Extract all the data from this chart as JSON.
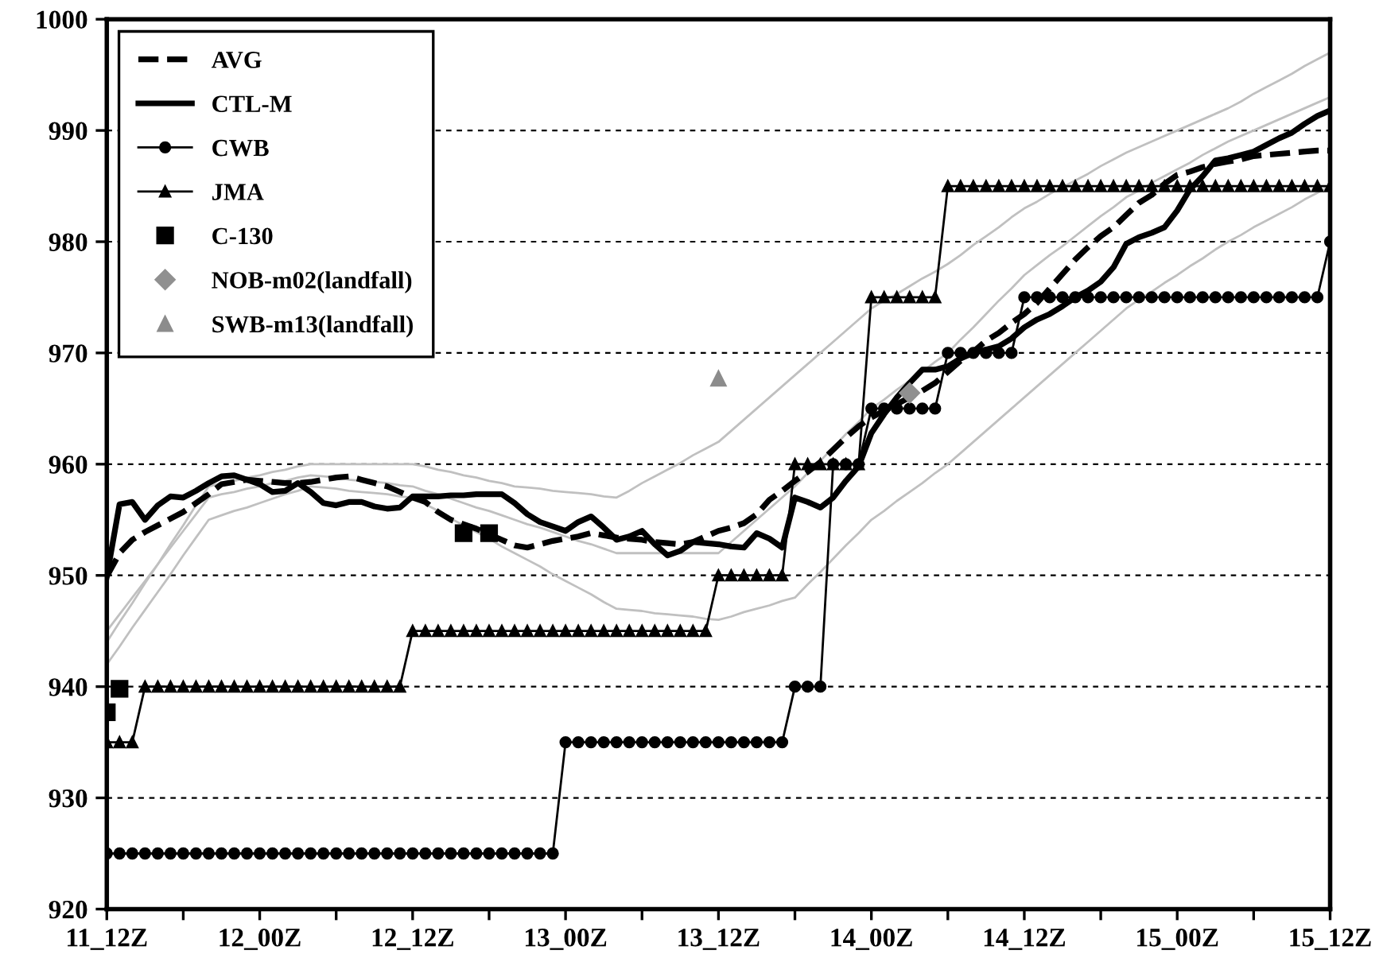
{
  "chart_data": {
    "type": "line",
    "ylim": [
      920,
      1000
    ],
    "categories": [
      "11_12Z",
      null,
      null,
      null,
      null,
      null,
      null,
      null,
      null,
      null,
      null,
      null,
      "12_00Z",
      null,
      null,
      null,
      null,
      null,
      null,
      null,
      null,
      null,
      null,
      null,
      "12_12Z",
      null,
      null,
      null,
      null,
      null,
      null,
      null,
      null,
      null,
      null,
      null,
      "13_00Z",
      null,
      null,
      null,
      null,
      null,
      null,
      null,
      null,
      null,
      null,
      null,
      "13_12Z",
      null,
      null,
      null,
      null,
      null,
      null,
      null,
      null,
      null,
      null,
      null,
      "14_00Z",
      null,
      null,
      null,
      null,
      null,
      null,
      null,
      null,
      null,
      null,
      null,
      "14_12Z",
      null,
      null,
      null,
      null,
      null,
      null,
      null,
      null,
      null,
      null,
      null,
      "15_00Z",
      null,
      null,
      null,
      null,
      null,
      null,
      null,
      null,
      null,
      null,
      null,
      "15_12Z"
    ],
    "yticks": [
      920,
      930,
      940,
      950,
      960,
      970,
      980,
      990,
      1000
    ],
    "grid": "y",
    "legend": "top left",
    "series": [
      {
        "color": "#c0c0c0",
        "values": [
          944,
          945.8,
          947.5,
          949.3,
          951,
          952.8,
          954.5,
          956.3,
          958,
          958.3,
          958.5,
          958.8,
          959,
          959.3,
          959.5,
          959.8,
          960,
          960,
          960,
          960,
          960,
          960,
          960,
          960,
          960,
          959.8,
          959.5,
          959.3,
          959,
          958.8,
          958.5,
          958.3,
          958,
          957.9,
          957.8,
          957.6,
          957.5,
          957.4,
          957.3,
          957.1,
          957,
          957.6,
          958.3,
          958.9,
          959.5,
          960.1,
          960.8,
          961.4,
          962,
          963,
          964,
          965,
          966,
          967,
          968,
          969,
          970,
          971,
          972,
          973,
          974,
          974.7,
          975.3,
          976,
          976.7,
          977.3,
          978,
          978.8,
          979.7,
          980.5,
          981.3,
          982.2,
          983,
          983.6,
          984.3,
          984.9,
          985.5,
          986.1,
          986.8,
          987.4,
          988,
          988.5,
          989,
          989.5,
          990,
          990.5,
          991,
          991.5,
          992,
          992.6,
          993.3,
          993.9,
          994.5,
          995.1,
          995.8,
          996.4,
          997
        ]
      },
      {
        "color": "#c0c0c0",
        "values": [
          942,
          943.6,
          945.3,
          946.9,
          948.5,
          950.1,
          951.8,
          953.4,
          955,
          955.4,
          955.8,
          956.1,
          956.5,
          956.9,
          957.3,
          957.6,
          958,
          957.9,
          957.8,
          957.6,
          957.5,
          957.4,
          957.3,
          957.1,
          957,
          956.4,
          955.8,
          955.1,
          954.5,
          953.9,
          953.3,
          952.6,
          952,
          951.4,
          950.8,
          950.1,
          949.5,
          948.9,
          948.3,
          947.6,
          947,
          946.9,
          946.8,
          946.6,
          946.5,
          946.4,
          946.3,
          946.1,
          946,
          946.3,
          946.7,
          947,
          947.3,
          947.7,
          948,
          949.2,
          950.3,
          951.5,
          952.7,
          953.8,
          955,
          955.8,
          956.7,
          957.5,
          958.3,
          959.2,
          960,
          961,
          962,
          963,
          964,
          965,
          966,
          967,
          968,
          969,
          970,
          971,
          972,
          973,
          974,
          974.8,
          975.5,
          976.3,
          977,
          977.8,
          978.5,
          979.3,
          980,
          980.6,
          981.3,
          981.9,
          982.5,
          983.1,
          983.8,
          984.4,
          985
        ]
      },
      {
        "color": "#c0c0c0",
        "values": [
          945,
          946.5,
          948,
          949.5,
          951,
          952.5,
          954,
          955.5,
          957,
          957.3,
          957.5,
          957.8,
          958,
          958.3,
          958.5,
          958.8,
          959,
          958.9,
          958.8,
          958.6,
          958.5,
          958.4,
          958.3,
          958.1,
          958,
          957.6,
          957.3,
          956.9,
          956.5,
          956.1,
          955.8,
          955.4,
          955,
          954.6,
          954.3,
          953.9,
          953.5,
          953.1,
          952.8,
          952.4,
          952,
          952,
          952,
          952,
          952,
          952,
          952,
          952,
          952,
          953,
          954,
          955,
          956,
          957,
          958,
          959.2,
          960.3,
          961.5,
          962.7,
          963.8,
          965,
          965.8,
          966.7,
          967.5,
          968.3,
          969.2,
          970,
          971.2,
          972.3,
          973.5,
          974.7,
          975.8,
          977,
          977.9,
          978.8,
          979.6,
          980.5,
          981.4,
          982.3,
          983.1,
          984,
          984.6,
          985.3,
          985.9,
          986.5,
          987.1,
          987.8,
          988.4,
          989,
          989.5,
          990,
          990.5,
          991,
          991.5,
          992,
          992.5,
          993
        ]
      },
      {
        "name": "AVG",
        "color": "#000000",
        "line_style": "dashed",
        "values": [
          949.9,
          952,
          953.2,
          953.9,
          954.5,
          955.1,
          955.7,
          956.5,
          957.3,
          958.2,
          958.4,
          958.6,
          958.5,
          958.4,
          958.3,
          958.3,
          958.4,
          958.6,
          958.8,
          958.9,
          958.6,
          958.3,
          958,
          957.5,
          957,
          956.6,
          955.7,
          955,
          954.6,
          954.2,
          953.7,
          953.2,
          952.7,
          952.5,
          952.8,
          953.1,
          953.3,
          953.5,
          953.8,
          953.6,
          953.4,
          953.3,
          953.2,
          953,
          952.9,
          952.8,
          953,
          953.5,
          954,
          954.3,
          954.7,
          955.5,
          956.8,
          957.6,
          958.5,
          959.3,
          960.2,
          961.3,
          962.4,
          963.4,
          964.2,
          964.8,
          965.4,
          966,
          966.6,
          967.3,
          968.3,
          969.3,
          970.1,
          971.1,
          971.8,
          972.7,
          973.5,
          974.5,
          975.8,
          977.1,
          978.4,
          979.5,
          980.5,
          981.3,
          982.4,
          983.5,
          984.2,
          985.2,
          986,
          986.3,
          986.7,
          987,
          987.2,
          987.4,
          987.7,
          987.8,
          987.9,
          988,
          988.1,
          988.2,
          988.2
        ]
      },
      {
        "name": "CTL-M",
        "color": "#000000",
        "line_style": "solid",
        "values": [
          949.9,
          956.4,
          956.6,
          955,
          956.3,
          957.1,
          957,
          957.6,
          958.3,
          958.9,
          959,
          958.6,
          958.2,
          957.5,
          957.6,
          958.3,
          957.5,
          956.5,
          956.3,
          956.6,
          956.6,
          956.2,
          956,
          956.1,
          957.1,
          957.1,
          957.1,
          957.2,
          957.2,
          957.3,
          957.3,
          957.3,
          956.5,
          955.5,
          954.8,
          954.4,
          954,
          954.8,
          955.3,
          954.3,
          953.2,
          953.5,
          954,
          952.8,
          951.8,
          952.2,
          953,
          952.9,
          952.8,
          952.6,
          952.5,
          953.8,
          953.3,
          952.5,
          957,
          956.6,
          956.1,
          957,
          958.5,
          959.8,
          962.8,
          964.5,
          966,
          967.3,
          968.5,
          968.5,
          968.8,
          969.5,
          970,
          970.3,
          970.6,
          971.3,
          972.3,
          973,
          973.5,
          974.2,
          975,
          975.6,
          976.4,
          977.7,
          979.8,
          980.4,
          980.8,
          981.3,
          982.8,
          984.7,
          985.9,
          987.3,
          987.5,
          987.8,
          988.1,
          988.7,
          989.3,
          989.8,
          990.6,
          991.3,
          991.8
        ]
      },
      {
        "name": "CWB",
        "color": "#000000",
        "line_style": "solid",
        "marker": "circle",
        "values": [
          925,
          925,
          925,
          925,
          925,
          925,
          925,
          925,
          925,
          925,
          925,
          925,
          925,
          925,
          925,
          925,
          925,
          925,
          925,
          925,
          925,
          925,
          925,
          925,
          925,
          925,
          925,
          925,
          925,
          925,
          925,
          925,
          925,
          925,
          925,
          925,
          935,
          935,
          935,
          935,
          935,
          935,
          935,
          935,
          935,
          935,
          935,
          935,
          935,
          935,
          935,
          935,
          935,
          935,
          940,
          940,
          940,
          960,
          960,
          960,
          965,
          965,
          965,
          965,
          965,
          965,
          970,
          970,
          970,
          970,
          970,
          970,
          975,
          975,
          975,
          975,
          975,
          975,
          975,
          975,
          975,
          975,
          975,
          975,
          975,
          975,
          975,
          975,
          975,
          975,
          975,
          975,
          975,
          975,
          975,
          975,
          980
        ]
      },
      {
        "name": "JMA",
        "color": "#000000",
        "line_style": "solid",
        "marker": "triangle",
        "values": [
          935,
          935,
          935,
          940,
          940,
          940,
          940,
          940,
          940,
          940,
          940,
          940,
          940,
          940,
          940,
          940,
          940,
          940,
          940,
          940,
          940,
          940,
          940,
          940,
          945,
          945,
          945,
          945,
          945,
          945,
          945,
          945,
          945,
          945,
          945,
          945,
          945,
          945,
          945,
          945,
          945,
          945,
          945,
          945,
          945,
          945,
          945,
          945,
          950,
          950,
          950,
          950,
          950,
          950,
          960,
          960,
          960,
          960,
          960,
          960,
          975,
          975,
          975,
          975,
          975,
          975,
          985,
          985,
          985,
          985,
          985,
          985,
          985,
          985,
          985,
          985,
          985,
          985,
          985,
          985,
          985,
          985,
          985,
          985,
          985,
          985,
          985,
          985,
          985,
          985,
          985,
          985,
          985,
          985,
          985,
          985,
          985
        ]
      },
      {
        "type": "scatter",
        "name": "C-130",
        "color": "#000000",
        "marker": "square",
        "values": [
          937.7,
          939.8,
          null,
          null,
          null,
          null,
          null,
          null,
          null,
          null,
          null,
          null,
          null,
          null,
          null,
          null,
          null,
          null,
          null,
          null,
          null,
          null,
          null,
          null,
          null,
          null,
          null,
          null,
          953.8,
          null,
          953.8,
          null,
          null,
          null,
          null,
          null,
          null,
          null,
          null,
          null,
          null,
          null,
          null,
          null,
          null,
          null,
          null,
          null,
          null,
          null,
          null,
          null,
          null,
          null,
          null,
          null,
          null,
          null,
          null,
          null,
          null,
          null,
          null,
          null,
          null,
          null,
          null,
          null,
          null,
          null,
          null,
          null,
          null,
          null,
          null,
          null,
          null,
          null,
          null,
          null,
          null,
          null,
          null,
          null,
          null,
          null,
          null,
          null,
          null,
          null,
          null,
          null,
          null,
          null,
          null,
          null,
          null
        ]
      },
      {
        "type": "scatter",
        "name": "NOB-m02(landfall)",
        "color": "#909090",
        "marker": "diamond",
        "values": [
          null,
          null,
          null,
          null,
          null,
          null,
          null,
          null,
          null,
          null,
          null,
          null,
          null,
          null,
          null,
          null,
          null,
          null,
          null,
          null,
          null,
          null,
          null,
          null,
          null,
          null,
          null,
          null,
          null,
          null,
          null,
          null,
          null,
          null,
          null,
          null,
          null,
          null,
          null,
          null,
          null,
          null,
          null,
          null,
          null,
          null,
          null,
          null,
          null,
          null,
          null,
          null,
          null,
          null,
          null,
          null,
          null,
          null,
          null,
          null,
          null,
          null,
          null,
          966.4,
          null,
          null,
          null,
          null,
          null,
          null,
          null,
          null,
          null,
          null,
          null,
          null,
          null,
          null,
          null,
          null,
          null,
          null,
          null,
          null,
          null,
          null,
          null,
          null,
          null,
          null,
          null,
          null,
          null,
          null,
          null,
          null,
          null
        ]
      },
      {
        "type": "scatter",
        "name": "SWB-m13(landfall)",
        "color": "#8c8c8c",
        "marker": "triangle",
        "values": [
          null,
          null,
          null,
          null,
          null,
          null,
          null,
          null,
          null,
          null,
          null,
          null,
          null,
          null,
          null,
          null,
          null,
          null,
          null,
          null,
          null,
          null,
          null,
          null,
          null,
          null,
          null,
          null,
          null,
          null,
          null,
          null,
          null,
          null,
          null,
          null,
          null,
          null,
          null,
          null,
          null,
          null,
          null,
          null,
          null,
          null,
          null,
          null,
          967.7,
          null,
          null,
          null,
          null,
          null,
          null,
          null,
          null,
          null,
          null,
          null,
          null,
          null,
          null,
          null,
          null,
          null,
          null,
          null,
          null,
          null,
          null,
          null,
          null,
          null,
          null,
          null,
          null,
          null,
          null,
          null,
          null,
          null,
          null,
          null,
          null,
          null,
          null,
          null,
          null,
          null,
          null,
          null,
          null,
          null,
          null,
          null,
          null
        ]
      }
    ]
  }
}
